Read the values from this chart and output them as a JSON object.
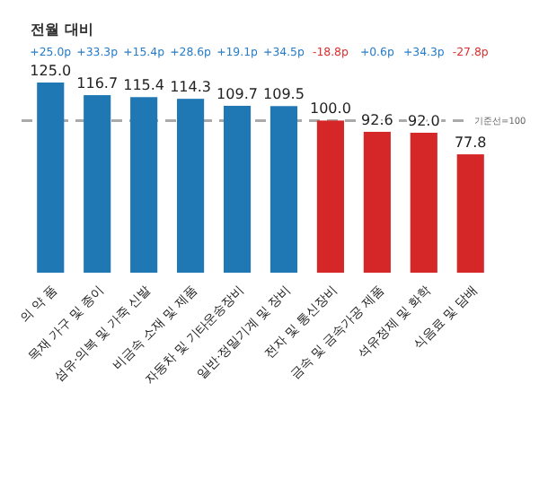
{
  "chart_data": {
    "type": "bar",
    "subtitle": "전월 대비",
    "categories": [
      "의 약 품",
      "목재 가구 및 종이",
      "섬유·의복 및 가죽 신발",
      "비금속 소재 및 제품",
      "자동차 및 기타운송장비",
      "일반·정밀기계 및 장비",
      "전자 및 통신장비",
      "금속 및 금속가공 제품",
      "석유정제 및 화학",
      "식음료 및 담배"
    ],
    "values": [
      125.0,
      116.7,
      115.4,
      114.3,
      109.7,
      109.5,
      100.0,
      92.6,
      92.0,
      77.8
    ],
    "value_labels": [
      "125.0",
      "116.7",
      "115.4",
      "114.3",
      "109.7",
      "109.5",
      "100.0",
      "92.6",
      "92.0",
      "77.8"
    ],
    "colors": [
      "#1f77b4",
      "#1f77b4",
      "#1f77b4",
      "#1f77b4",
      "#1f77b4",
      "#1f77b4",
      "#d62728",
      "#d62728",
      "#d62728",
      "#d62728"
    ],
    "tick_labels": "x",
    "ref_lines": [
      {
        "axis": "y",
        "value": 100,
        "label": "기준선=100",
        "color": "#aaaaaa",
        "line_style": "dashed"
      }
    ],
    "annotations": [
      "+25.0p",
      "+33.3p",
      "+15.4p",
      "+28.6p",
      "+19.1p",
      "+34.5p",
      "-18.8p",
      "+0.6p",
      "+34.3p",
      "-27.8p"
    ]
  }
}
